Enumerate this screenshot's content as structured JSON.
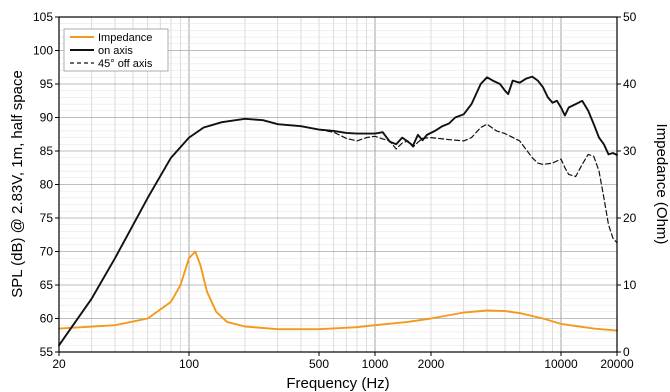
{
  "chart_data": {
    "type": "line",
    "title": "",
    "xlabel": "Frequency (Hz)",
    "ylabel_left": "SPL (dB) @ 2.83V, 1m, half space",
    "ylabel_right": "Impedance (Ohm)",
    "x_scale": "log",
    "xlim": [
      20,
      20000
    ],
    "ylim_left": [
      55,
      105
    ],
    "ylim_right": [
      0,
      50
    ],
    "x_tick_labels": [
      "20",
      "100",
      "500",
      "1000",
      "2000",
      "10000",
      "20000"
    ],
    "x_ticks": [
      20,
      100,
      500,
      1000,
      2000,
      10000,
      20000
    ],
    "y_ticks_left": [
      55,
      60,
      65,
      70,
      75,
      80,
      85,
      90,
      95,
      100,
      105
    ],
    "y_ticks_right": [
      0,
      10,
      20,
      30,
      40,
      50
    ],
    "grid": true,
    "legend_position": "top-left",
    "colors": {
      "impedance": "#f39a1e",
      "on_axis": "#111111",
      "off_axis": "#111111"
    },
    "series": [
      {
        "name": "Impedance",
        "axis": "right",
        "style": "solid",
        "points": [
          [
            20,
            3.5
          ],
          [
            40,
            4
          ],
          [
            60,
            5
          ],
          [
            80,
            7.5
          ],
          [
            90,
            10
          ],
          [
            100,
            14
          ],
          [
            108,
            15
          ],
          [
            115,
            13
          ],
          [
            125,
            9
          ],
          [
            140,
            6
          ],
          [
            160,
            4.5
          ],
          [
            200,
            3.8
          ],
          [
            300,
            3.4
          ],
          [
            500,
            3.4
          ],
          [
            800,
            3.7
          ],
          [
            1000,
            4
          ],
          [
            1500,
            4.5
          ],
          [
            2000,
            5
          ],
          [
            3000,
            5.9
          ],
          [
            4000,
            6.2
          ],
          [
            5000,
            6.1
          ],
          [
            6000,
            5.8
          ],
          [
            8000,
            5
          ],
          [
            10000,
            4.2
          ],
          [
            15000,
            3.5
          ],
          [
            20000,
            3.2
          ]
        ]
      },
      {
        "name": "on axis",
        "axis": "left",
        "style": "solid",
        "points": [
          [
            20,
            56
          ],
          [
            30,
            63
          ],
          [
            40,
            69
          ],
          [
            60,
            78
          ],
          [
            80,
            84
          ],
          [
            100,
            87
          ],
          [
            120,
            88.5
          ],
          [
            150,
            89.3
          ],
          [
            200,
            89.8
          ],
          [
            250,
            89.6
          ],
          [
            300,
            89
          ],
          [
            400,
            88.7
          ],
          [
            500,
            88.2
          ],
          [
            600,
            88
          ],
          [
            700,
            87.7
          ],
          [
            800,
            87.6
          ],
          [
            1000,
            87.6
          ],
          [
            1100,
            87.8
          ],
          [
            1200,
            86.4
          ],
          [
            1300,
            86
          ],
          [
            1400,
            87
          ],
          [
            1500,
            86.4
          ],
          [
            1600,
            85.8
          ],
          [
            1700,
            87.4
          ],
          [
            1800,
            86.6
          ],
          [
            1900,
            87.4
          ],
          [
            2100,
            88
          ],
          [
            2300,
            88.7
          ],
          [
            2500,
            89.1
          ],
          [
            2700,
            90
          ],
          [
            3000,
            90.5
          ],
          [
            3300,
            92
          ],
          [
            3700,
            95
          ],
          [
            4000,
            96
          ],
          [
            4300,
            95.5
          ],
          [
            4700,
            95
          ],
          [
            5000,
            94
          ],
          [
            5200,
            93.5
          ],
          [
            5500,
            95.5
          ],
          [
            6000,
            95.2
          ],
          [
            6500,
            95.8
          ],
          [
            7000,
            96.1
          ],
          [
            7500,
            95.5
          ],
          [
            8000,
            94.5
          ],
          [
            8500,
            93
          ],
          [
            9000,
            92.2
          ],
          [
            9500,
            92.5
          ],
          [
            10000,
            91.5
          ],
          [
            10500,
            90.3
          ],
          [
            11000,
            91.5
          ],
          [
            12000,
            92
          ],
          [
            13000,
            92.5
          ],
          [
            14000,
            91
          ],
          [
            15000,
            89
          ],
          [
            16000,
            87
          ],
          [
            17000,
            86
          ],
          [
            18000,
            84.5
          ],
          [
            19000,
            84.7
          ],
          [
            20000,
            84.4
          ]
        ]
      },
      {
        "name": "45° off axis",
        "axis": "left",
        "style": "dashed",
        "points": [
          [
            500,
            88.2
          ],
          [
            600,
            87.8
          ],
          [
            700,
            86.9
          ],
          [
            800,
            86.5
          ],
          [
            900,
            87
          ],
          [
            1000,
            87.2
          ],
          [
            1100,
            86.8
          ],
          [
            1200,
            86.5
          ],
          [
            1300,
            85.3
          ],
          [
            1400,
            86.2
          ],
          [
            1500,
            86.5
          ],
          [
            1600,
            85.6
          ],
          [
            1700,
            86.3
          ],
          [
            1800,
            86.9
          ],
          [
            2000,
            87
          ],
          [
            2500,
            86.7
          ],
          [
            3000,
            86.5
          ],
          [
            3300,
            87
          ],
          [
            3700,
            88.5
          ],
          [
            4000,
            89
          ],
          [
            4500,
            88
          ],
          [
            5000,
            87.6
          ],
          [
            6000,
            86.5
          ],
          [
            7000,
            84
          ],
          [
            7500,
            83.2
          ],
          [
            8000,
            83
          ],
          [
            9000,
            83.2
          ],
          [
            10000,
            83.8
          ],
          [
            10500,
            82.5
          ],
          [
            11000,
            81.5
          ],
          [
            12000,
            81.2
          ],
          [
            13000,
            83
          ],
          [
            14000,
            84.5
          ],
          [
            15000,
            84.2
          ],
          [
            16000,
            82
          ],
          [
            17000,
            78
          ],
          [
            18000,
            74
          ],
          [
            19000,
            72
          ],
          [
            20000,
            71.3
          ]
        ]
      }
    ]
  }
}
